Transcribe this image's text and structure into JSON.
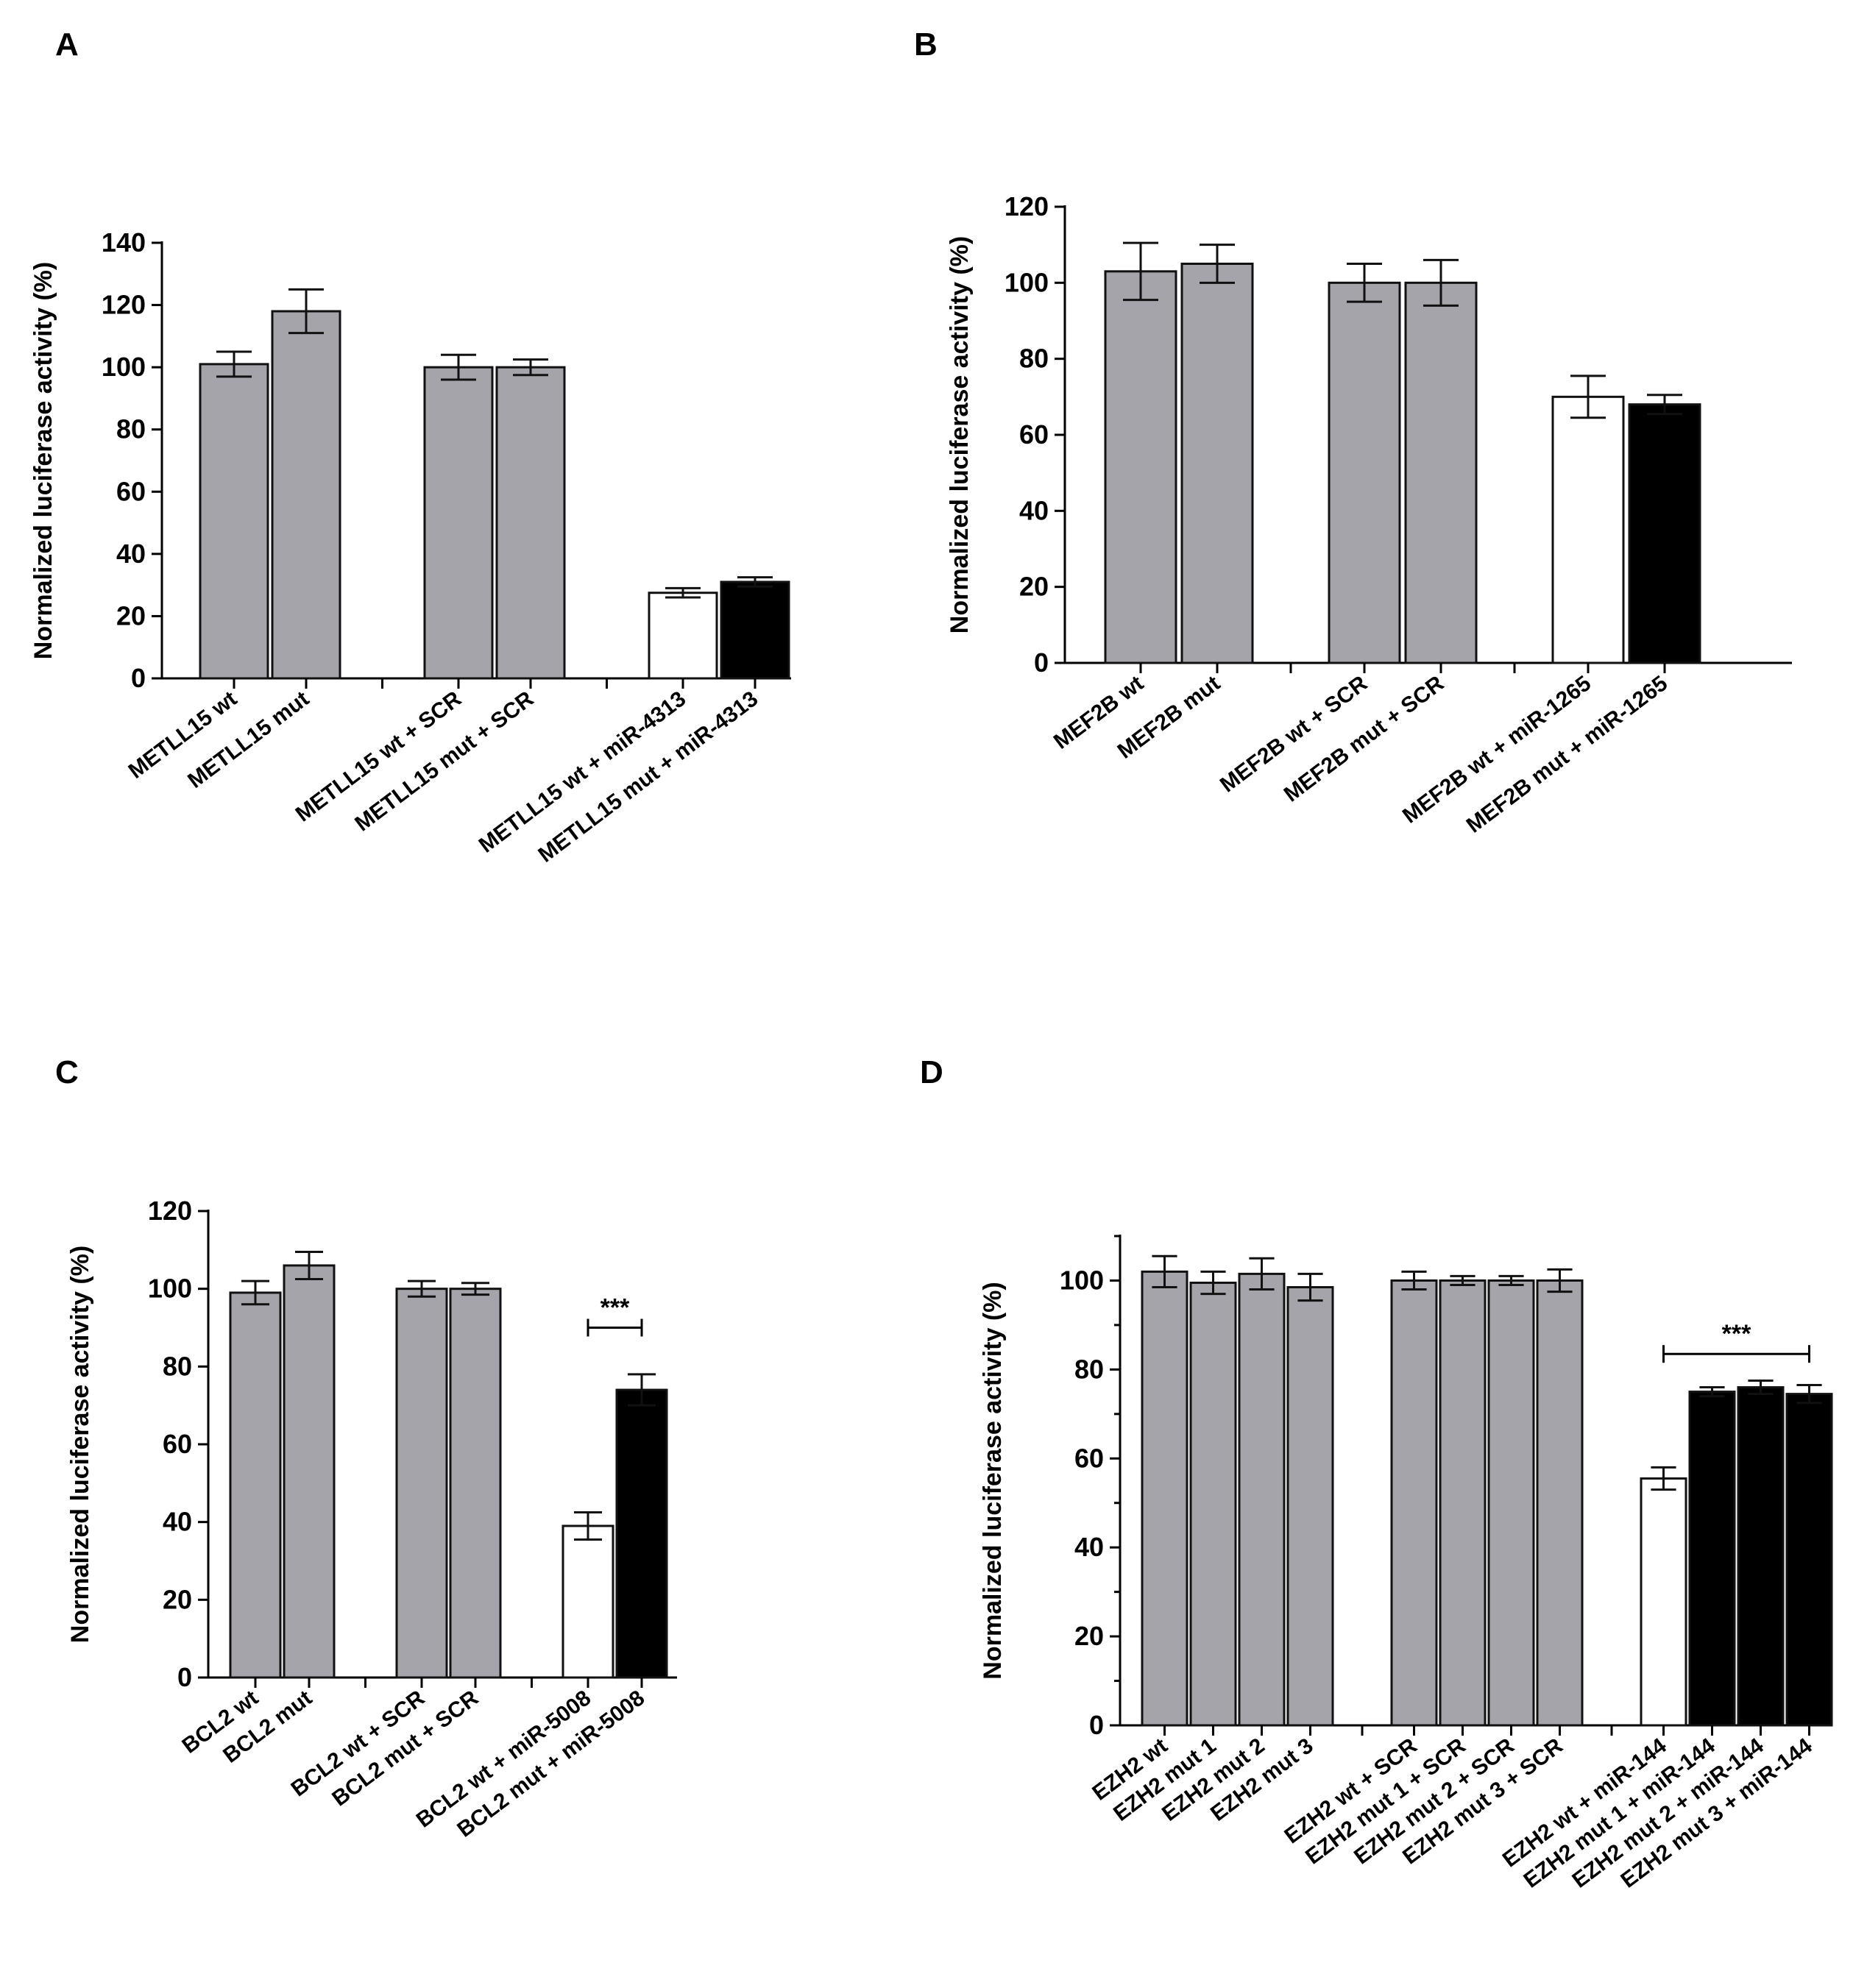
{
  "colors": {
    "gray": "#a5a4aa",
    "white": "#ffffff",
    "black": "#000000",
    "stroke": "#111111"
  },
  "chart_data": [
    {
      "type": "bar",
      "panel": "A",
      "ylabel": "Normalized luciferase activity (%)",
      "ylim": [
        0,
        140
      ],
      "yticks": [
        0,
        20,
        40,
        60,
        80,
        100,
        120,
        140
      ],
      "minor_ticks": false,
      "groups": [
        [
          0,
          1
        ],
        [
          2,
          3
        ],
        [
          4,
          5
        ]
      ],
      "categories": [
        "METLL15 wt",
        "METLL15 mut",
        "METLL15 wt + SCR",
        "METLL15 mut + SCR",
        "METLL15 wt + miR-4313",
        "METLL15 mut + miR-4313"
      ],
      "values": [
        101,
        118,
        100,
        100,
        27.5,
        31
      ],
      "errors": [
        4,
        7,
        4,
        2.5,
        1.5,
        1.5
      ],
      "fills": [
        "gray",
        "gray",
        "gray",
        "gray",
        "white",
        "black"
      ],
      "significance": []
    },
    {
      "type": "bar",
      "panel": "B",
      "ylabel": "Normalized luciferase activity (%)",
      "ylim": [
        0,
        120
      ],
      "yticks": [
        0,
        20,
        40,
        60,
        80,
        100,
        120
      ],
      "minor_ticks": false,
      "groups": [
        [
          0,
          1
        ],
        [
          2,
          3
        ],
        [
          4,
          5
        ]
      ],
      "categories": [
        "MEF2B wt",
        "MEF2B mut",
        "MEF2B wt + SCR",
        "MEF2B mut + SCR",
        "MEF2B wt + miR-1265",
        "MEF2B mut + miR-1265"
      ],
      "values": [
        103,
        105,
        100,
        100,
        70,
        68
      ],
      "errors": [
        7.5,
        5,
        5,
        6,
        5.5,
        2.5
      ],
      "fills": [
        "gray",
        "gray",
        "gray",
        "gray",
        "white",
        "black"
      ],
      "significance": []
    },
    {
      "type": "bar",
      "panel": "C",
      "ylabel": "Normalized luciferase activity (%)",
      "ylim": [
        0,
        120
      ],
      "yticks": [
        0,
        20,
        40,
        60,
        80,
        100,
        120
      ],
      "minor_ticks": false,
      "groups": [
        [
          0,
          1
        ],
        [
          2,
          3
        ],
        [
          4,
          5
        ]
      ],
      "categories": [
        "BCL2 wt",
        "BCL2 mut",
        "BCL2 wt + SCR",
        "BCL2 mut + SCR",
        "BCL2 wt + miR-5008",
        "BCL2 mut + miR-5008"
      ],
      "values": [
        99,
        106,
        100,
        100,
        39,
        74
      ],
      "errors": [
        3,
        3.5,
        2,
        1.5,
        3.5,
        4
      ],
      "fills": [
        "gray",
        "gray",
        "gray",
        "gray",
        "white",
        "black"
      ],
      "significance": [
        {
          "from": 4,
          "to": 5,
          "y": 90,
          "label": "***"
        }
      ]
    },
    {
      "type": "bar",
      "panel": "D",
      "ylabel": "Normalized luciferase activity (%)",
      "ylim": [
        0,
        110
      ],
      "yticks": [
        0,
        20,
        40,
        60,
        80,
        100
      ],
      "minor_ticks": true,
      "groups": [
        [
          0,
          1,
          2,
          3
        ],
        [
          4,
          5,
          6,
          7
        ],
        [
          8,
          9,
          10,
          11
        ]
      ],
      "categories": [
        "EZH2 wt",
        "EZH2 mut 1",
        "EZH2 mut 2",
        "EZH2 mut 3",
        "EZH2 wt + SCR",
        "EZH2 mut 1 + SCR",
        "EZH2 mut 2 + SCR",
        "EZH2 mut 3 + SCR",
        "EZH2 wt + miR-144",
        "EZH2 mut 1 + miR-144",
        "EZH2 mut 2 + miR-144",
        "EZH2 mut 3 + miR-144"
      ],
      "values": [
        102,
        99.5,
        101.5,
        98.5,
        100,
        100,
        100,
        100,
        55.5,
        75,
        76,
        74.5
      ],
      "errors": [
        3.5,
        2.5,
        3.5,
        3,
        2,
        1,
        1,
        2.5,
        2.5,
        1,
        1.5,
        2
      ],
      "fills": [
        "gray",
        "gray",
        "gray",
        "gray",
        "gray",
        "gray",
        "gray",
        "gray",
        "white",
        "black",
        "black",
        "black"
      ],
      "significance": [
        {
          "from": 8,
          "to": 11,
          "y": 83.5,
          "label": "***"
        }
      ]
    }
  ]
}
